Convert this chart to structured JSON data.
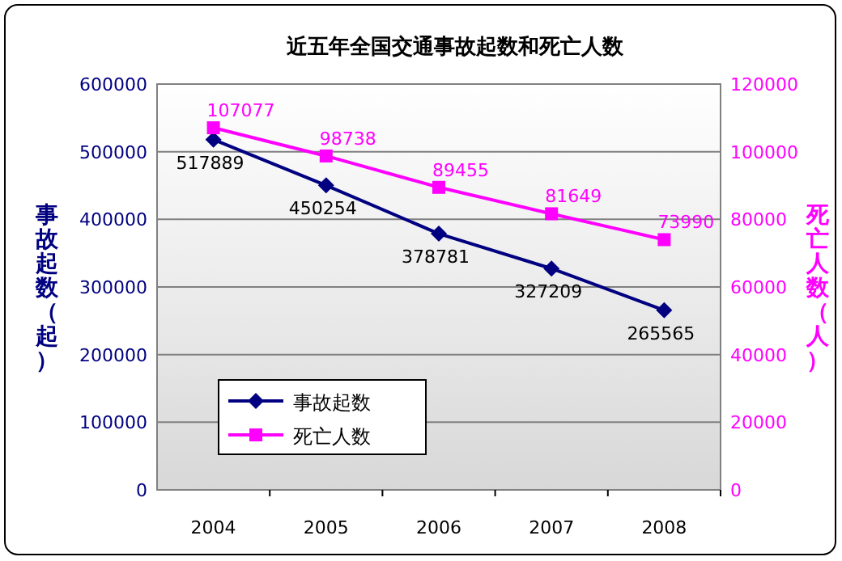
{
  "chart_data": {
    "type": "line",
    "title": "近五年全国交通事故起数和死亡人数",
    "categories": [
      "2004",
      "2005",
      "2006",
      "2007",
      "2008"
    ],
    "ylabel": "事故起数（起）",
    "y2label": "死亡人数（人）",
    "ylim": [
      0,
      600000
    ],
    "yticks": [
      0,
      100000,
      200000,
      300000,
      400000,
      500000,
      600000
    ],
    "y2lim": [
      0,
      120000
    ],
    "y2ticks": [
      0,
      20000,
      40000,
      60000,
      80000,
      100000,
      120000
    ],
    "series": [
      {
        "name": "事故起数",
        "color": "#000080",
        "marker": "diamond",
        "values": [
          517889,
          450254,
          378781,
          327209,
          265565
        ]
      },
      {
        "name": "死亡人数",
        "color": "#ff00ff",
        "marker": "square",
        "axis": "y2",
        "values": [
          107077,
          98738,
          89455,
          81649,
          73990
        ]
      }
    ],
    "data_labels": true,
    "grid": "y",
    "legend": "bottom left",
    "line_style": "solid"
  }
}
